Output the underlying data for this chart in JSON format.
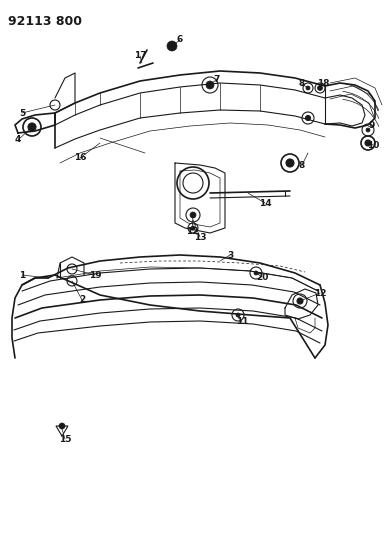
{
  "title": "92113 800",
  "background_color": "#ffffff",
  "line_color": "#1a1a1a",
  "fig_width": 3.86,
  "fig_height": 5.33,
  "dpi": 100
}
